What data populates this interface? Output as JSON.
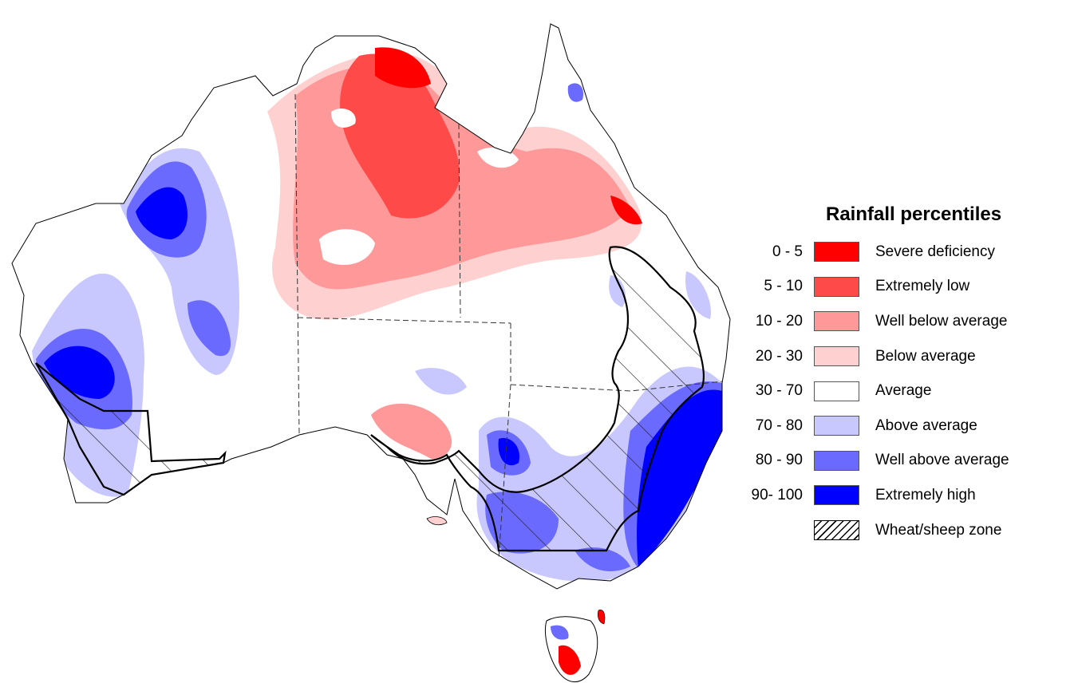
{
  "map": {
    "region": "Australia",
    "tasmania": "Tasmania"
  },
  "legend": {
    "title": "Rainfall percentiles",
    "classes": [
      {
        "range": "0 - 5",
        "label": "Severe deficiency",
        "color": "#ff0000"
      },
      {
        "range": "5 - 10",
        "label": "Extremely low",
        "color": "#ff4a4a"
      },
      {
        "range": "10 - 20",
        "label": "Well below average",
        "color": "#ff9898"
      },
      {
        "range": "20 - 30",
        "label": "Below average",
        "color": "#ffd0d0"
      },
      {
        "range": "30 - 70",
        "label": "Average",
        "color": "#ffffff"
      },
      {
        "range": "70 - 80",
        "label": "Above average",
        "color": "#c8c8ff"
      },
      {
        "range": "80 - 90",
        "label": "Well above average",
        "color": "#6a6aff"
      },
      {
        "range": "90- 100",
        "label": "Extremely high",
        "color": "#0000ff"
      }
    ],
    "hatch": {
      "label": "Wheat/sheep zone"
    }
  }
}
